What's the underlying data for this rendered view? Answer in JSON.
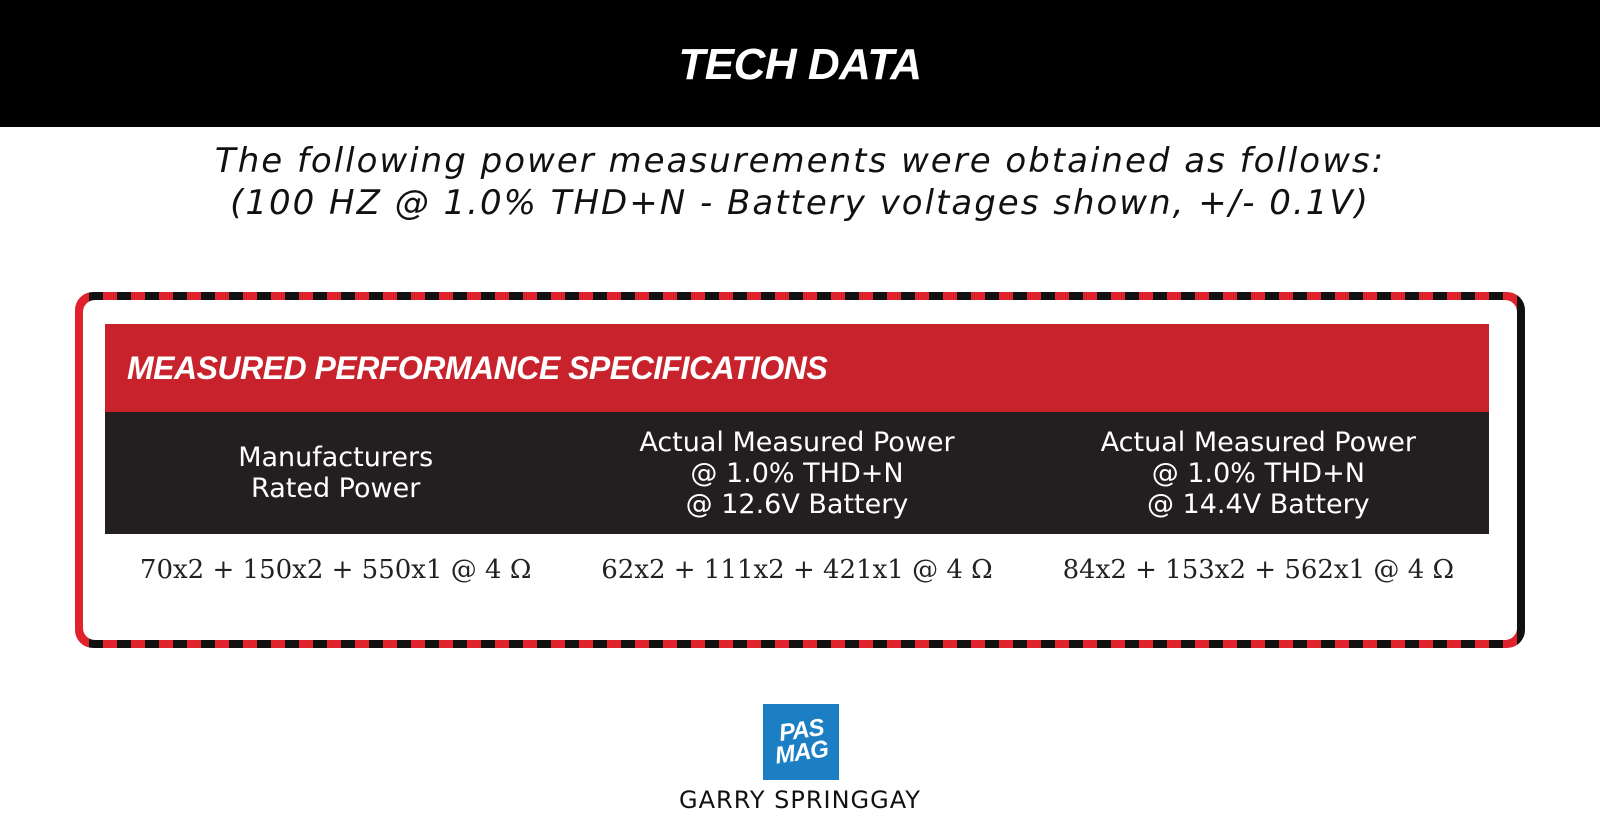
{
  "banner": {
    "title": "TECH DATA"
  },
  "subtitle": {
    "line1": "The following power measurements were obtained as follows:",
    "line2": "(100 HZ @ 1.0% THD+N - Battery voltages shown, +/- 0.1V)"
  },
  "spec_table": {
    "title": "MEASURED PERFORMANCE SPECIFICATIONS",
    "columns": [
      {
        "lines": [
          "Manufacturers",
          "Rated Power"
        ]
      },
      {
        "lines": [
          "Actual Measured Power",
          "@  1.0% THD+N",
          "@ 12.6V Battery"
        ]
      },
      {
        "lines": [
          "Actual Measured Power",
          "@  1.0% THD+N",
          "@ 14.4V Battery"
        ]
      }
    ],
    "row": [
      "70x2 + 150x2 + 550x1 @ 4 Ω",
      "62x2 + 111x2 + 421x1 @ 4 Ω",
      "84x2 + 153x2 + 562x1 @ 4 Ω"
    ]
  },
  "logo": {
    "line1": "PAS",
    "line2": "MAG"
  },
  "author": "GARRY SPRINGGAY",
  "colors": {
    "banner": "#000000",
    "header_red": "#c8232c",
    "column_header_dark": "#231f20",
    "logo_blue": "#1c7fc4"
  }
}
